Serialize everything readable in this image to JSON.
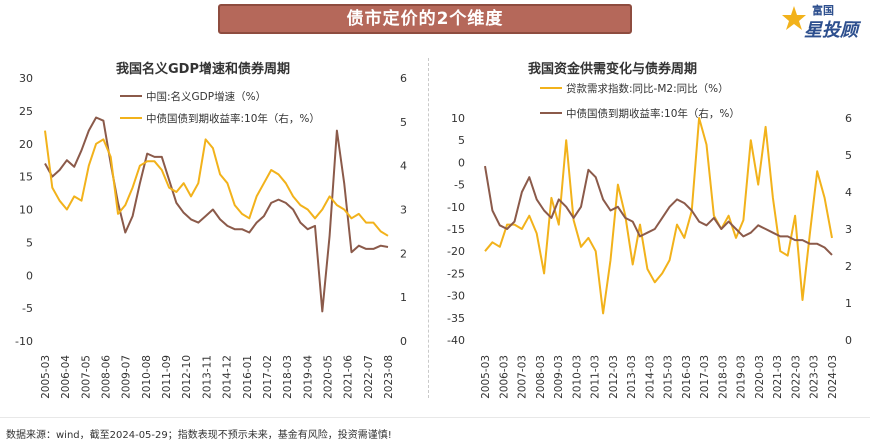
{
  "banner": {
    "title": "债市定价的2个维度"
  },
  "logo": {
    "small": "富国",
    "big": "星投顾",
    "icon": "star-logo-icon"
  },
  "footer": {
    "text": "数据来源：wind，截至2024-05-29；指数表现不预示未来，基金有风险，投资需谨慎!"
  },
  "colors": {
    "brown": "#8b5a4a",
    "gold": "#f2b21b",
    "banner": "#b5685a"
  },
  "chart_data": [
    {
      "type": "line",
      "title": "我国名义GDP增速和债券周期",
      "x_labels": [
        "2005-03",
        "2006-04",
        "2007-05",
        "2008-06",
        "2009-07",
        "2010-08",
        "2011-09",
        "2012-10",
        "2013-11",
        "2014-12",
        "2016-01",
        "2017-02",
        "2018-03",
        "2019-04",
        "2020-05",
        "2021-06",
        "2022-07",
        "2023-08"
      ],
      "y_left": {
        "min": -10,
        "max": 30,
        "ticks": [
          -10,
          -5,
          0,
          5,
          10,
          15,
          20,
          25,
          30
        ]
      },
      "y_right": {
        "min": 0,
        "max": 6,
        "ticks": [
          0,
          1,
          2,
          3,
          4,
          5,
          6
        ]
      },
      "grid": false,
      "legend_position": "top-center",
      "series": [
        {
          "name": "中国:名义GDP增速（%）",
          "axis": "left",
          "color": "#8b5a4a",
          "values": [
            17,
            15,
            16,
            17.5,
            16.5,
            19,
            22,
            24,
            23.5,
            17,
            11,
            6.5,
            9,
            14,
            18.5,
            18,
            18,
            14.5,
            11,
            9.5,
            8.5,
            8,
            9,
            10,
            8.5,
            7.5,
            7,
            7,
            6.5,
            8,
            9,
            11,
            11.5,
            11,
            10,
            8,
            7,
            7.5,
            -5.5,
            6,
            22,
            14,
            3.5,
            4.5,
            4,
            4,
            4.5,
            4.3
          ]
        },
        {
          "name": "中债国债到期收益率:10年（右，%）",
          "axis": "right",
          "color": "#f2b21b",
          "values": [
            4.8,
            3.5,
            3.2,
            3,
            3.3,
            3.2,
            4,
            4.5,
            4.6,
            4.2,
            2.9,
            3.1,
            3.5,
            4,
            4.1,
            4.1,
            3.9,
            3.5,
            3.4,
            3.6,
            3.3,
            3.6,
            4.6,
            4.4,
            3.8,
            3.6,
            3.1,
            2.9,
            2.8,
            3.3,
            3.6,
            3.9,
            3.8,
            3.6,
            3.3,
            3.1,
            3,
            2.8,
            3,
            3.3,
            3.1,
            3,
            2.8,
            2.9,
            2.7,
            2.7,
            2.5,
            2.4
          ]
        }
      ]
    },
    {
      "type": "line",
      "title": "我国资金供需变化与债券周期",
      "x_labels": [
        "2005-03",
        "2006-03",
        "2007-03",
        "2008-03",
        "2009-03",
        "2010-03",
        "2011-03",
        "2012-03",
        "2013-03",
        "2014-03",
        "2015-03",
        "2016-03",
        "2017-03",
        "2018-03",
        "2019-03",
        "2020-03",
        "2021-03",
        "2022-03",
        "2023-03",
        "2024-03"
      ],
      "y_left": {
        "min": -40,
        "max": 10,
        "ticks": [
          -40,
          -35,
          -30,
          -25,
          -20,
          -15,
          -10,
          -5,
          0,
          5,
          10
        ]
      },
      "y_right": {
        "min": 0,
        "max": 6,
        "ticks": [
          0,
          1,
          2,
          3,
          4,
          5,
          6
        ]
      },
      "grid": false,
      "legend_position": "top-center",
      "series": [
        {
          "name": "贷款需求指数:同比-M2:同比（%）",
          "axis": "left",
          "color": "#f2b21b",
          "values": [
            -20,
            -18,
            -19,
            -14,
            -14,
            -15,
            -12,
            -16,
            -25,
            -8,
            -14,
            5,
            -13,
            -19,
            -17,
            -20,
            -34,
            -22,
            -5,
            -12,
            -23,
            -14,
            -24,
            -27,
            -25,
            -22,
            -14,
            -17,
            -11,
            10,
            4,
            -12,
            -15,
            -12,
            -17,
            -13,
            5,
            -5,
            8,
            -8,
            -20,
            -21,
            -12,
            -31,
            -16,
            -2,
            -8,
            -17
          ]
        },
        {
          "name": "中债国债到期收益率:10年（右，%）",
          "axis": "right",
          "color": "#8b5a4a",
          "values": [
            4.7,
            3.5,
            3.1,
            3.0,
            3.2,
            4.0,
            4.4,
            3.8,
            3.5,
            3.3,
            3.8,
            3.6,
            3.3,
            3.6,
            4.6,
            4.4,
            3.8,
            3.5,
            3.6,
            3.3,
            3.2,
            2.8,
            2.9,
            3.0,
            3.3,
            3.6,
            3.8,
            3.7,
            3.5,
            3.2,
            3.1,
            3.3,
            3.0,
            3.2,
            3.0,
            2.8,
            2.9,
            3.1,
            3.0,
            2.9,
            2.8,
            2.8,
            2.7,
            2.7,
            2.6,
            2.6,
            2.5,
            2.3
          ]
        }
      ]
    }
  ]
}
